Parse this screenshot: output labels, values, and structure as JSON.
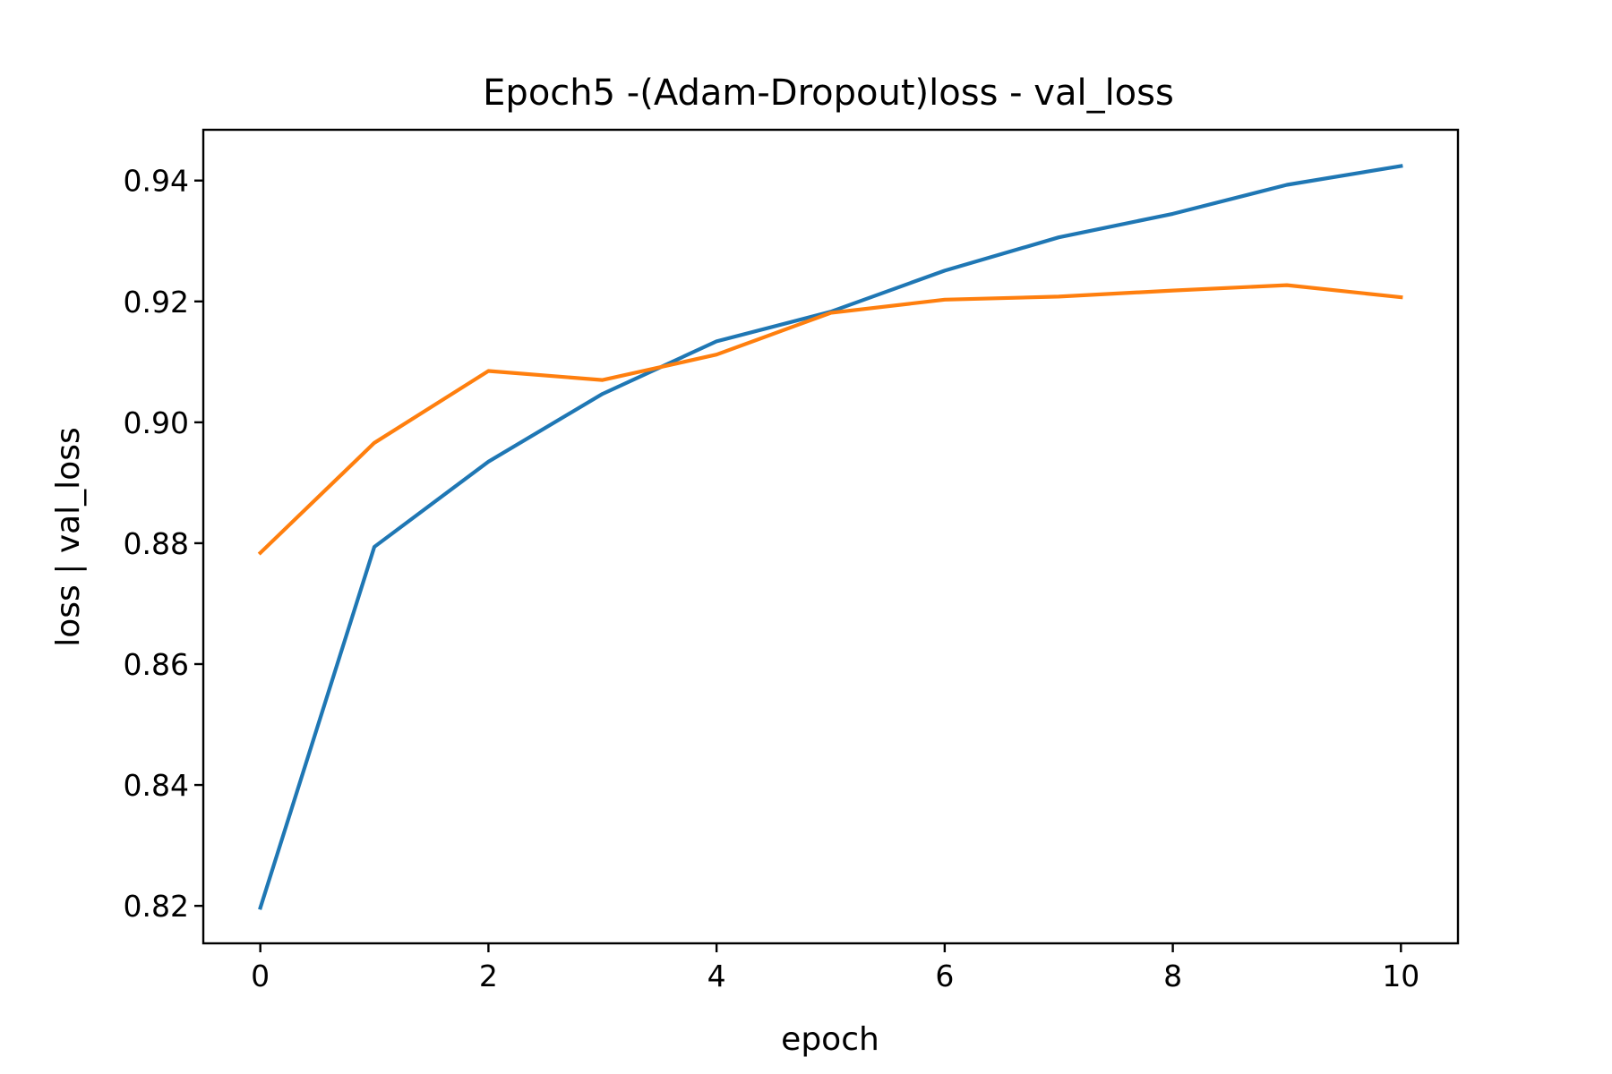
{
  "chart_data": {
    "type": "line",
    "title": "Epoch5 -(Adam-Dropout)loss - val_loss",
    "xlabel": "epoch",
    "ylabel": "loss | val_loss",
    "x": [
      0,
      1,
      2,
      3,
      4,
      5,
      6,
      7,
      8,
      9,
      10
    ],
    "xlim": [
      -0.5,
      10.5
    ],
    "ylim": [
      0.8138,
      0.9484
    ],
    "xticks": [
      0,
      2,
      4,
      6,
      8,
      10
    ],
    "xtick_labels": [
      "0",
      "2",
      "4",
      "6",
      "8",
      "10"
    ],
    "yticks": [
      0.82,
      0.84,
      0.86,
      0.88,
      0.9,
      0.92,
      0.94
    ],
    "ytick_labels": [
      "0.82",
      "0.84",
      "0.86",
      "0.88",
      "0.90",
      "0.92",
      "0.94"
    ],
    "grid": false,
    "series": [
      {
        "color": "#1f77b4",
        "values": [
          0.8197,
          0.8794,
          0.8935,
          0.9047,
          0.9134,
          0.9183,
          0.9251,
          0.9306,
          0.9345,
          0.9393,
          0.9424
        ]
      },
      {
        "color": "#ff7f0e",
        "values": [
          0.8784,
          0.8966,
          0.9085,
          0.907,
          0.9112,
          0.9181,
          0.9203,
          0.9208,
          0.9218,
          0.9227,
          0.9207
        ]
      }
    ]
  }
}
